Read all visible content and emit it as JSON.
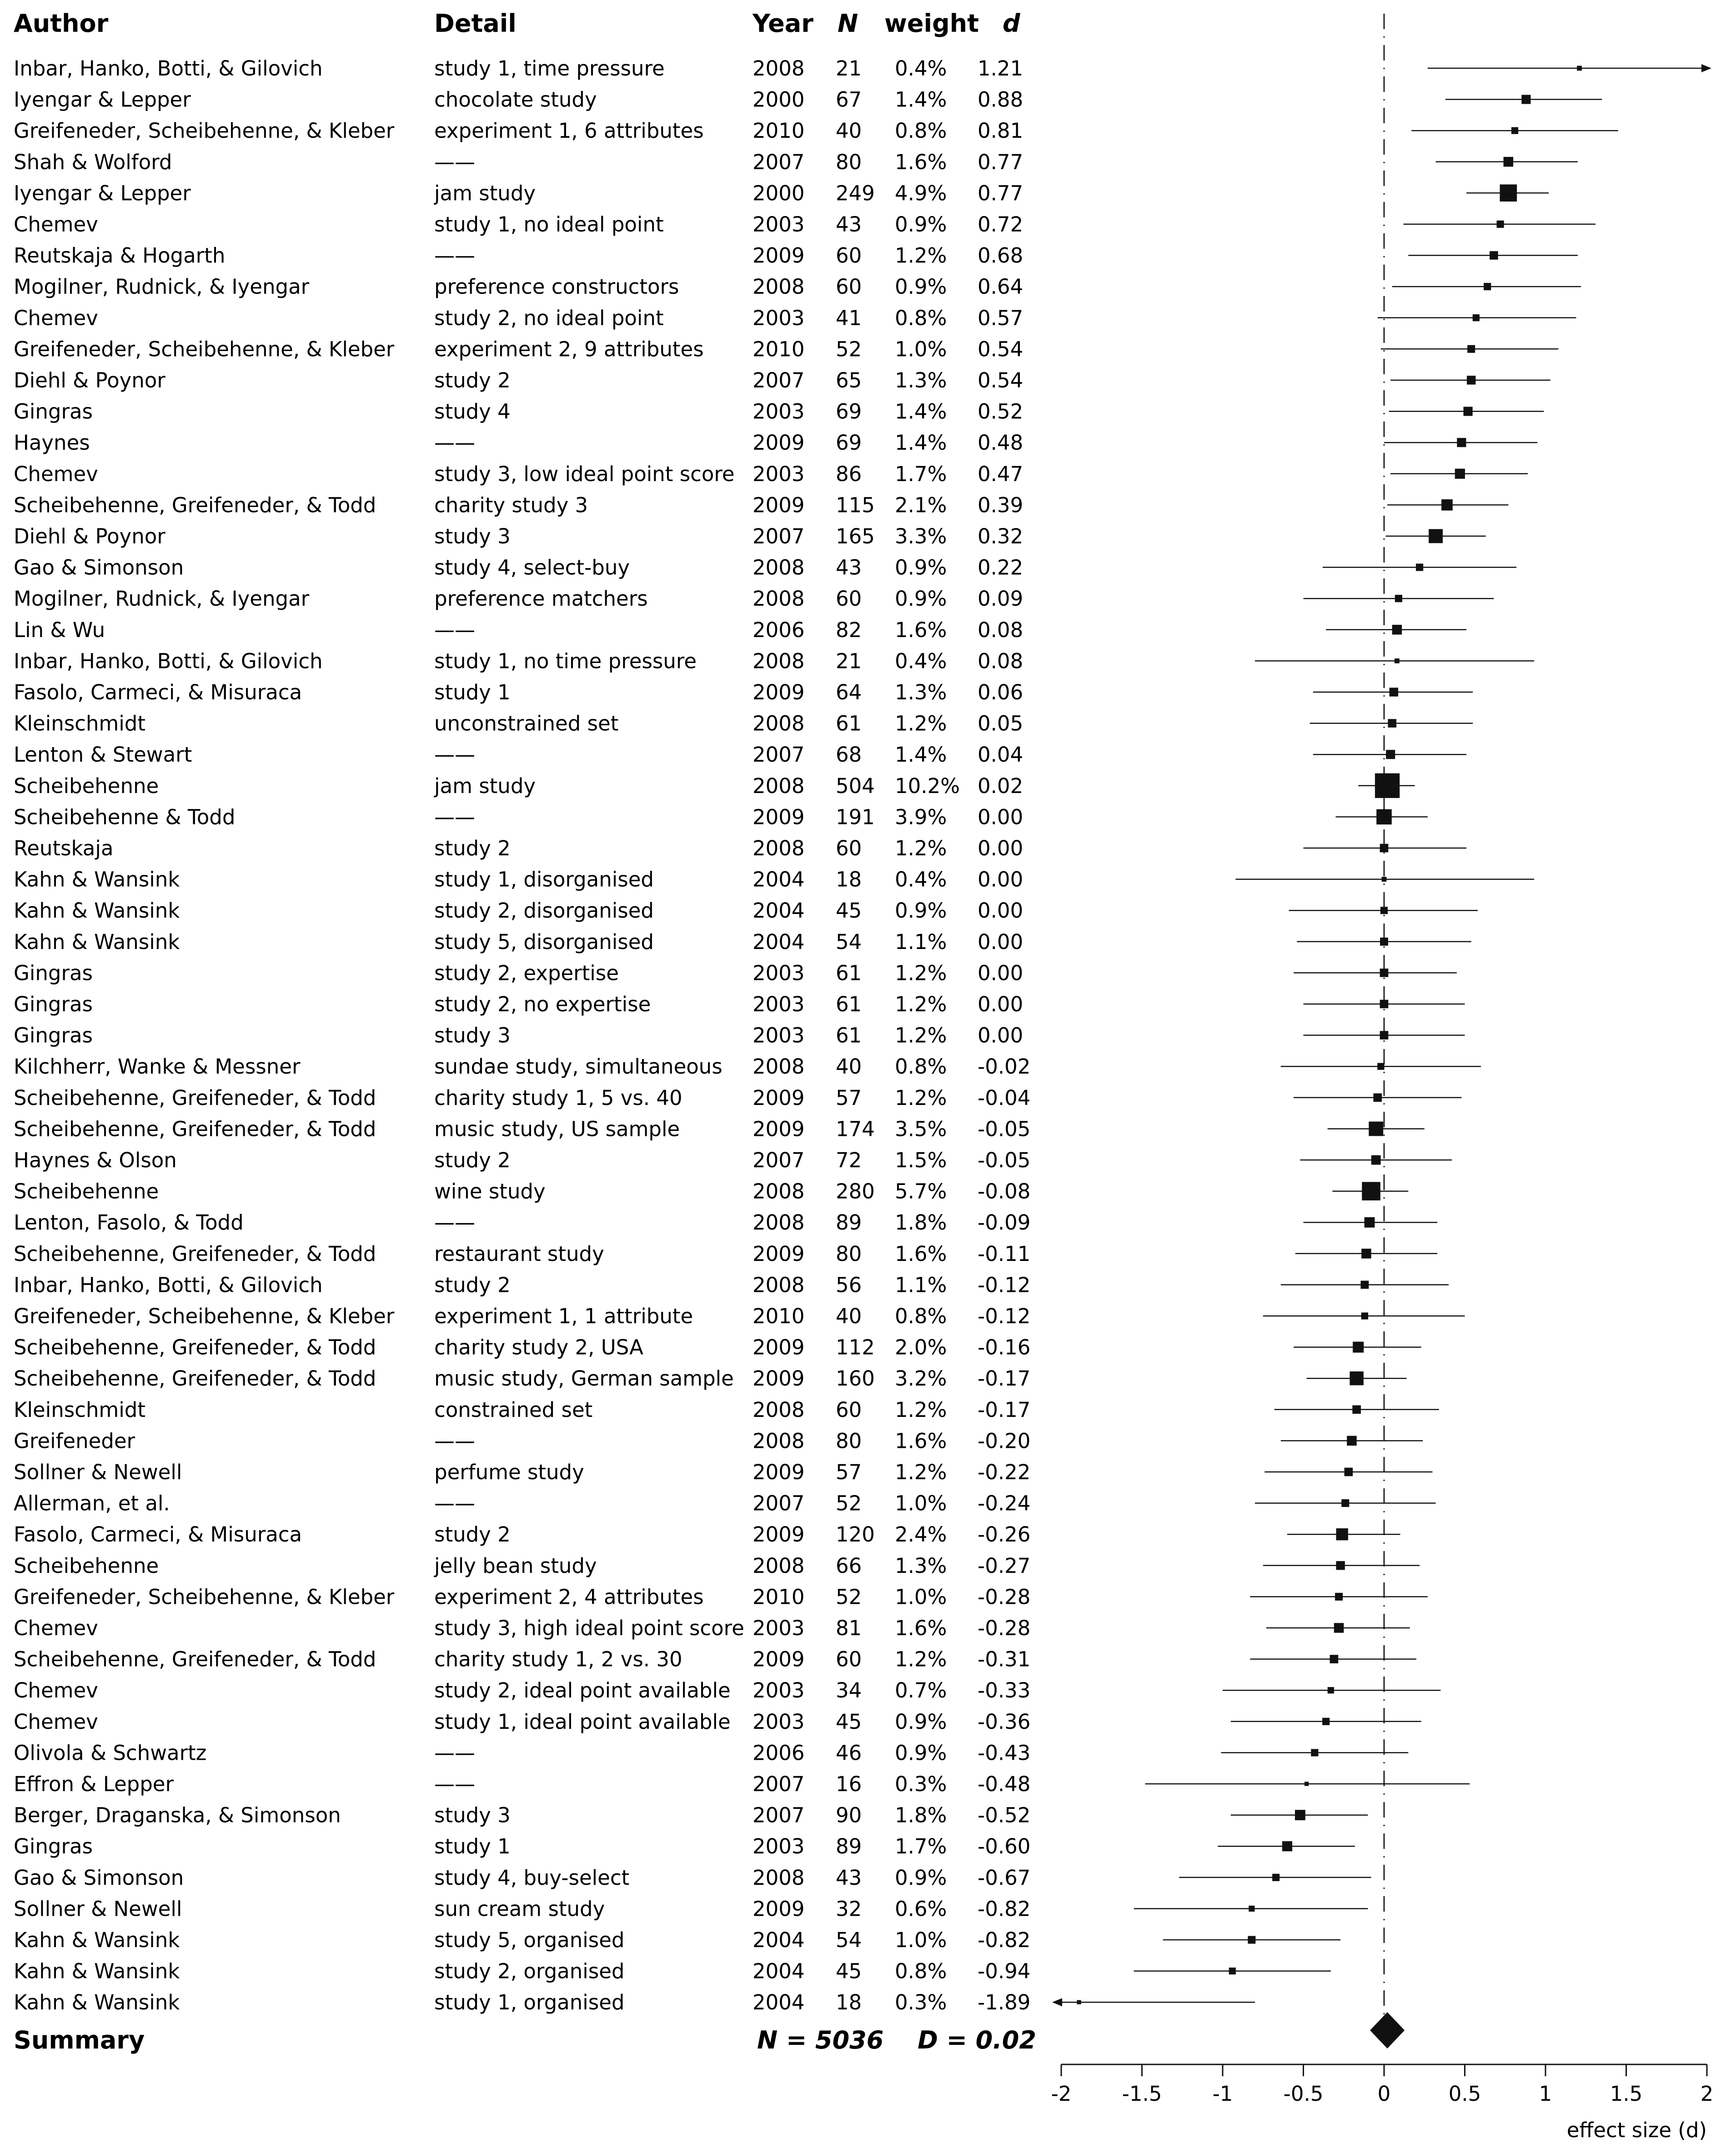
{
  "headers": {
    "author": "Author",
    "detail": "Detail",
    "year": "Year",
    "n": "N",
    "weight": "weight",
    "d": "d"
  },
  "summary": {
    "label": "Summary",
    "n_text": "N = 5036",
    "d_text": "D = 0.02"
  },
  "chart_data": {
    "type": "forest",
    "xlabel": "effect size (d)",
    "xlim": [
      -2,
      2
    ],
    "ticks": [
      -2,
      -1.5,
      -1,
      -0.5,
      0,
      0.5,
      1,
      1.5,
      2
    ],
    "summary_d": 0.02,
    "rows": [
      {
        "author": "Inbar, Hanko, Botti, & Gilovich",
        "detail": "study 1, time pressure",
        "year": "2008",
        "n": "21",
        "weight": "0.4%",
        "d": "1.21",
        "ci": [
          0.27,
          2.15
        ]
      },
      {
        "author": "Iyengar & Lepper",
        "detail": "chocolate study",
        "year": "2000",
        "n": "67",
        "weight": "1.4%",
        "d": "0.88",
        "ci": [
          0.38,
          1.35
        ]
      },
      {
        "author": "Greifeneder, Scheibehenne, & Kleber",
        "detail": "experiment 1, 6 attributes",
        "year": "2010",
        "n": "40",
        "weight": "0.8%",
        "d": "0.81",
        "ci": [
          0.17,
          1.45
        ]
      },
      {
        "author": "Shah & Wolford",
        "detail": "——",
        "year": "2007",
        "n": "80",
        "weight": "1.6%",
        "d": "0.77",
        "ci": [
          0.32,
          1.2
        ]
      },
      {
        "author": "Iyengar & Lepper",
        "detail": "jam study",
        "year": "2000",
        "n": "249",
        "weight": "4.9%",
        "d": "0.77",
        "ci": [
          0.51,
          1.02
        ]
      },
      {
        "author": "Chemev",
        "detail": "study 1, no ideal point",
        "year": "2003",
        "n": "43",
        "weight": "0.9%",
        "d": "0.72",
        "ci": [
          0.12,
          1.31
        ]
      },
      {
        "author": "Reutskaja & Hogarth",
        "detail": "——",
        "year": "2009",
        "n": "60",
        "weight": "1.2%",
        "d": "0.68",
        "ci": [
          0.15,
          1.2
        ]
      },
      {
        "author": "Mogilner, Rudnick, & Iyengar",
        "detail": "preference constructors",
        "year": "2008",
        "n": "60",
        "weight": "0.9%",
        "d": "0.64",
        "ci": [
          0.05,
          1.22
        ]
      },
      {
        "author": "Chemev",
        "detail": "study 2, no ideal point",
        "year": "2003",
        "n": "41",
        "weight": "0.8%",
        "d": "0.57",
        "ci": [
          -0.04,
          1.19
        ]
      },
      {
        "author": "Greifeneder, Scheibehenne, & Kleber",
        "detail": "experiment 2, 9 attributes",
        "year": "2010",
        "n": "52",
        "weight": "1.0%",
        "d": "0.54",
        "ci": [
          -0.02,
          1.08
        ]
      },
      {
        "author": "Diehl & Poynor",
        "detail": "study 2",
        "year": "2007",
        "n": "65",
        "weight": "1.3%",
        "d": "0.54",
        "ci": [
          0.04,
          1.03
        ]
      },
      {
        "author": "Gingras",
        "detail": "study 4",
        "year": "2003",
        "n": "69",
        "weight": "1.4%",
        "d": "0.52",
        "ci": [
          0.03,
          0.99
        ]
      },
      {
        "author": "Haynes",
        "detail": "——",
        "year": "2009",
        "n": "69",
        "weight": "1.4%",
        "d": "0.48",
        "ci": [
          0.0,
          0.95
        ]
      },
      {
        "author": "Chemev",
        "detail": "study 3, low ideal point score",
        "year": "2003",
        "n": "86",
        "weight": "1.7%",
        "d": "0.47",
        "ci": [
          0.04,
          0.89
        ]
      },
      {
        "author": "Scheibehenne, Greifeneder, & Todd",
        "detail": "charity study 3",
        "year": "2009",
        "n": "115",
        "weight": "2.1%",
        "d": "0.39",
        "ci": [
          0.02,
          0.77
        ]
      },
      {
        "author": "Diehl & Poynor",
        "detail": "study 3",
        "year": "2007",
        "n": "165",
        "weight": "3.3%",
        "d": "0.32",
        "ci": [
          0.01,
          0.63
        ]
      },
      {
        "author": "Gao & Simonson",
        "detail": "study 4, select-buy",
        "year": "2008",
        "n": "43",
        "weight": "0.9%",
        "d": "0.22",
        "ci": [
          -0.38,
          0.82
        ]
      },
      {
        "author": "Mogilner, Rudnick, & Iyengar",
        "detail": "preference matchers",
        "year": "2008",
        "n": "60",
        "weight": "0.9%",
        "d": "0.09",
        "ci": [
          -0.5,
          0.68
        ]
      },
      {
        "author": "Lin & Wu",
        "detail": "——",
        "year": "2006",
        "n": "82",
        "weight": "1.6%",
        "d": "0.08",
        "ci": [
          -0.36,
          0.51
        ]
      },
      {
        "author": "Inbar, Hanko, Botti, & Gilovich",
        "detail": "study 1, no time pressure",
        "year": "2008",
        "n": "21",
        "weight": "0.4%",
        "d": "0.08",
        "ci": [
          -0.8,
          0.93
        ]
      },
      {
        "author": "Fasolo, Carmeci, & Misuraca",
        "detail": "study 1",
        "year": "2009",
        "n": "64",
        "weight": "1.3%",
        "d": "0.06",
        "ci": [
          -0.44,
          0.55
        ]
      },
      {
        "author": "Kleinschmidt",
        "detail": "unconstrained set",
        "year": "2008",
        "n": "61",
        "weight": "1.2%",
        "d": "0.05",
        "ci": [
          -0.46,
          0.55
        ]
      },
      {
        "author": "Lenton & Stewart",
        "detail": "——",
        "year": "2007",
        "n": "68",
        "weight": "1.4%",
        "d": "0.04",
        "ci": [
          -0.44,
          0.51
        ]
      },
      {
        "author": "Scheibehenne",
        "detail": "jam study",
        "year": "2008",
        "n": "504",
        "weight": "10.2%",
        "d": "0.02",
        "ci": [
          -0.16,
          0.19
        ]
      },
      {
        "author": "Scheibehenne & Todd",
        "detail": "——",
        "year": "2009",
        "n": "191",
        "weight": "3.9%",
        "d": "0.00",
        "ci": [
          -0.3,
          0.27
        ]
      },
      {
        "author": "Reutskaja",
        "detail": "study 2",
        "year": "2008",
        "n": "60",
        "weight": "1.2%",
        "d": "0.00",
        "ci": [
          -0.5,
          0.51
        ]
      },
      {
        "author": "Kahn & Wansink",
        "detail": "study 1, disorganised",
        "year": "2004",
        "n": "18",
        "weight": "0.4%",
        "d": "0.00",
        "ci": [
          -0.92,
          0.93
        ]
      },
      {
        "author": "Kahn & Wansink",
        "detail": "study 2, disorganised",
        "year": "2004",
        "n": "45",
        "weight": "0.9%",
        "d": "0.00",
        "ci": [
          -0.59,
          0.58
        ]
      },
      {
        "author": "Kahn & Wansink",
        "detail": "study 5, disorganised",
        "year": "2004",
        "n": "54",
        "weight": "1.1%",
        "d": "0.00",
        "ci": [
          -0.54,
          0.54
        ]
      },
      {
        "author": "Gingras",
        "detail": "study 2, expertise",
        "year": "2003",
        "n": "61",
        "weight": "1.2%",
        "d": "0.00",
        "ci": [
          -0.56,
          0.45
        ]
      },
      {
        "author": "Gingras",
        "detail": "study 2, no expertise",
        "year": "2003",
        "n": "61",
        "weight": "1.2%",
        "d": "0.00",
        "ci": [
          -0.5,
          0.5
        ]
      },
      {
        "author": "Gingras",
        "detail": "study 3",
        "year": "2003",
        "n": "61",
        "weight": "1.2%",
        "d": "0.00",
        "ci": [
          -0.5,
          0.5
        ]
      },
      {
        "author": "Kilchherr, Wanke & Messner",
        "detail": "sundae study, simultaneous",
        "year": "2008",
        "n": "40",
        "weight": "0.8%",
        "d": "-0.02",
        "ci": [
          -0.64,
          0.6
        ]
      },
      {
        "author": "Scheibehenne, Greifeneder, & Todd",
        "detail": "charity study 1, 5 vs. 40",
        "year": "2009",
        "n": "57",
        "weight": "1.2%",
        "d": "-0.04",
        "ci": [
          -0.56,
          0.48
        ]
      },
      {
        "author": "Scheibehenne, Greifeneder, & Todd",
        "detail": "music study, US sample",
        "year": "2009",
        "n": "174",
        "weight": "3.5%",
        "d": "-0.05",
        "ci": [
          -0.35,
          0.25
        ]
      },
      {
        "author": "Haynes & Olson",
        "detail": "study 2",
        "year": "2007",
        "n": "72",
        "weight": "1.5%",
        "d": "-0.05",
        "ci": [
          -0.52,
          0.42
        ]
      },
      {
        "author": "Scheibehenne",
        "detail": "wine study",
        "year": "2008",
        "n": "280",
        "weight": "5.7%",
        "d": "-0.08",
        "ci": [
          -0.32,
          0.15
        ]
      },
      {
        "author": "Lenton, Fasolo, & Todd",
        "detail": "——",
        "year": "2008",
        "n": "89",
        "weight": "1.8%",
        "d": "-0.09",
        "ci": [
          -0.5,
          0.33
        ]
      },
      {
        "author": "Scheibehenne, Greifeneder, & Todd",
        "detail": "restaurant study",
        "year": "2009",
        "n": "80",
        "weight": "1.6%",
        "d": "-0.11",
        "ci": [
          -0.55,
          0.33
        ]
      },
      {
        "author": "Inbar, Hanko, Botti, & Gilovich",
        "detail": "study 2",
        "year": "2008",
        "n": "56",
        "weight": "1.1%",
        "d": "-0.12",
        "ci": [
          -0.64,
          0.4
        ]
      },
      {
        "author": "Greifeneder, Scheibehenne, & Kleber",
        "detail": "experiment 1, 1 attribute",
        "year": "2010",
        "n": "40",
        "weight": "0.8%",
        "d": "-0.12",
        "ci": [
          -0.75,
          0.5
        ]
      },
      {
        "author": "Scheibehenne, Greifeneder, & Todd",
        "detail": "charity study 2, USA",
        "year": "2009",
        "n": "112",
        "weight": "2.0%",
        "d": "-0.16",
        "ci": [
          -0.56,
          0.23
        ]
      },
      {
        "author": "Scheibehenne, Greifeneder, & Todd",
        "detail": "music study, German sample",
        "year": "2009",
        "n": "160",
        "weight": "3.2%",
        "d": "-0.17",
        "ci": [
          -0.48,
          0.14
        ]
      },
      {
        "author": "Kleinschmidt",
        "detail": "constrained set",
        "year": "2008",
        "n": "60",
        "weight": "1.2%",
        "d": "-0.17",
        "ci": [
          -0.68,
          0.34
        ]
      },
      {
        "author": "Greifeneder",
        "detail": "——",
        "year": "2008",
        "n": "80",
        "weight": "1.6%",
        "d": "-0.20",
        "ci": [
          -0.64,
          0.24
        ]
      },
      {
        "author": "Sollner & Newell",
        "detail": "perfume study",
        "year": "2009",
        "n": "57",
        "weight": "1.2%",
        "d": "-0.22",
        "ci": [
          -0.74,
          0.3
        ]
      },
      {
        "author": "Allerman, et al.",
        "detail": "——",
        "year": "2007",
        "n": "52",
        "weight": "1.0%",
        "d": "-0.24",
        "ci": [
          -0.8,
          0.32
        ]
      },
      {
        "author": "Fasolo, Carmeci, & Misuraca",
        "detail": "study 2",
        "year": "2009",
        "n": "120",
        "weight": "2.4%",
        "d": "-0.26",
        "ci": [
          -0.6,
          0.1
        ]
      },
      {
        "author": "Scheibehenne",
        "detail": "jelly bean study",
        "year": "2008",
        "n": "66",
        "weight": "1.3%",
        "d": "-0.27",
        "ci": [
          -0.75,
          0.22
        ]
      },
      {
        "author": "Greifeneder, Scheibehenne, & Kleber",
        "detail": "experiment 2, 4 attributes",
        "year": "2010",
        "n": "52",
        "weight": "1.0%",
        "d": "-0.28",
        "ci": [
          -0.83,
          0.27
        ]
      },
      {
        "author": "Chemev",
        "detail": "study 3, high ideal point score",
        "year": "2003",
        "n": "81",
        "weight": "1.6%",
        "d": "-0.28",
        "ci": [
          -0.73,
          0.16
        ]
      },
      {
        "author": "Scheibehenne, Greifeneder, & Todd",
        "detail": "charity study 1, 2 vs. 30",
        "year": "2009",
        "n": "60",
        "weight": "1.2%",
        "d": "-0.31",
        "ci": [
          -0.83,
          0.2
        ]
      },
      {
        "author": "Chemev",
        "detail": "study 2, ideal point available",
        "year": "2003",
        "n": "34",
        "weight": "0.7%",
        "d": "-0.33",
        "ci": [
          -1.0,
          0.35
        ]
      },
      {
        "author": "Chemev",
        "detail": "study 1, ideal point available",
        "year": "2003",
        "n": "45",
        "weight": "0.9%",
        "d": "-0.36",
        "ci": [
          -0.95,
          0.23
        ]
      },
      {
        "author": "Olivola & Schwartz",
        "detail": "——",
        "year": "2006",
        "n": "46",
        "weight": "0.9%",
        "d": "-0.43",
        "ci": [
          -1.01,
          0.15
        ]
      },
      {
        "author": "Effron & Lepper",
        "detail": "——",
        "year": "2007",
        "n": "16",
        "weight": "0.3%",
        "d": "-0.48",
        "ci": [
          -1.48,
          0.53
        ]
      },
      {
        "author": "Berger, Draganska, & Simonson",
        "detail": "study 3",
        "year": "2007",
        "n": "90",
        "weight": "1.8%",
        "d": "-0.52",
        "ci": [
          -0.95,
          -0.1
        ]
      },
      {
        "author": "Gingras",
        "detail": "study 1",
        "year": "2003",
        "n": "89",
        "weight": "1.7%",
        "d": "-0.60",
        "ci": [
          -1.03,
          -0.18
        ]
      },
      {
        "author": "Gao & Simonson",
        "detail": "study 4, buy-select",
        "year": "2008",
        "n": "43",
        "weight": "0.9%",
        "d": "-0.67",
        "ci": [
          -1.27,
          -0.08
        ]
      },
      {
        "author": "Sollner & Newell",
        "detail": "sun cream study",
        "year": "2009",
        "n": "32",
        "weight": "0.6%",
        "d": "-0.82",
        "ci": [
          -1.55,
          -0.1
        ]
      },
      {
        "author": "Kahn & Wansink",
        "detail": "study 5, organised",
        "year": "2004",
        "n": "54",
        "weight": "1.0%",
        "d": "-0.82",
        "ci": [
          -1.37,
          -0.27
        ]
      },
      {
        "author": "Kahn & Wansink",
        "detail": "study 2, organised",
        "year": "2004",
        "n": "45",
        "weight": "0.8%",
        "d": "-0.94",
        "ci": [
          -1.55,
          -0.33
        ]
      },
      {
        "author": "Kahn & Wansink",
        "detail": "study 1, organised",
        "year": "2004",
        "n": "18",
        "weight": "0.3%",
        "d": "-1.89",
        "ci": [
          -2.85,
          -0.8
        ]
      }
    ]
  }
}
